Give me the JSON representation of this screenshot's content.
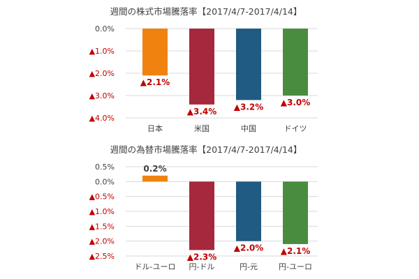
{
  "chart_data": [
    {
      "type": "bar",
      "title": "週間の株式市場騰落率【2017/4/7-2017/4/14】",
      "categories": [
        "日本",
        "米国",
        "中国",
        "ドイツ"
      ],
      "values": [
        -2.1,
        -3.4,
        -3.2,
        -3.0
      ],
      "bar_colors": [
        "#f0830f",
        "#a5283c",
        "#1f5b82",
        "#4a8c3f"
      ],
      "value_labels": [
        "▲2.1%",
        "▲3.4%",
        "▲3.2%",
        "▲3.0%"
      ],
      "yticks": [
        0.0,
        -1.0,
        -2.0,
        -3.0,
        -4.0
      ],
      "ytick_labels": [
        "0.0%",
        "▲1.0%",
        "▲2.0%",
        "▲3.0%",
        "▲4.0%"
      ],
      "ylim": [
        -4.0,
        0.0
      ],
      "grid": true,
      "legend": false,
      "xlabel": "",
      "ylabel": ""
    },
    {
      "type": "bar",
      "title": "週間の為替市場騰落率【2017/4/7-2017/4/14】",
      "categories": [
        "ドル-ユーロ",
        "円-ドル",
        "円-元",
        "円-ユーロ"
      ],
      "values": [
        0.2,
        -2.3,
        -2.0,
        -2.1
      ],
      "bar_colors": [
        "#f0830f",
        "#a5283c",
        "#1f5b82",
        "#4a8c3f"
      ],
      "value_labels": [
        "0.2%",
        "▲2.3%",
        "▲2.0%",
        "▲2.1%"
      ],
      "yticks": [
        0.5,
        0.0,
        -0.5,
        -1.0,
        -1.5,
        -2.0,
        -2.5
      ],
      "ytick_labels": [
        "0.5%",
        "0.0%",
        "▲0.5%",
        "▲1.0%",
        "▲1.5%",
        "▲2.0%",
        "▲2.5%"
      ],
      "ylim": [
        -2.5,
        0.5
      ],
      "grid": true,
      "legend": false,
      "xlabel": "",
      "ylabel": ""
    }
  ],
  "colors": {
    "positive_text": "#404040",
    "negative_text": "#c00000",
    "grid": "#d9d9d9",
    "axis_text": "#404040"
  }
}
